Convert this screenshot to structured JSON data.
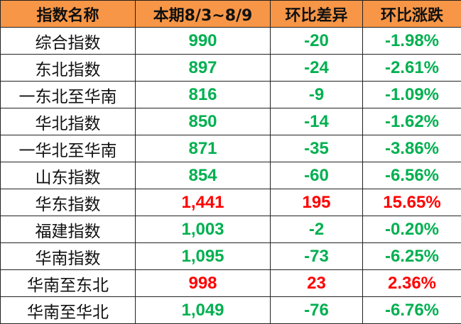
{
  "colors": {
    "header_bg": "#F79646",
    "down": "#00B050",
    "up": "#FF0000"
  },
  "headers": [
    "指数名称",
    "本期8/3~8/9",
    "环比差异",
    "环比涨跌"
  ],
  "rows": [
    {
      "name": "综合指数",
      "value": "990",
      "diff": "-20",
      "pct": "-1.98%",
      "trend": "down"
    },
    {
      "name": "东北指数",
      "value": "897",
      "diff": "-24",
      "pct": "-2.61%",
      "trend": "down"
    },
    {
      "name": "一东北至华南",
      "value": "816",
      "diff": "-9",
      "pct": "-1.09%",
      "trend": "down"
    },
    {
      "name": "华北指数",
      "value": "850",
      "diff": "-14",
      "pct": "-1.62%",
      "trend": "down"
    },
    {
      "name": "一华北至华南",
      "value": "871",
      "diff": "-35",
      "pct": "-3.86%",
      "trend": "down"
    },
    {
      "name": "山东指数",
      "value": "854",
      "diff": "-60",
      "pct": "-6.56%",
      "trend": "down"
    },
    {
      "name": "华东指数",
      "value": "1,441",
      "diff": "195",
      "pct": "15.65%",
      "trend": "up"
    },
    {
      "name": "福建指数",
      "value": "1,003",
      "diff": "-2",
      "pct": "-0.20%",
      "trend": "down"
    },
    {
      "name": "华南指数",
      "value": "1,095",
      "diff": "-73",
      "pct": "-6.25%",
      "trend": "down"
    },
    {
      "name": "华南至东北",
      "value": "998",
      "diff": "23",
      "pct": "2.36%",
      "trend": "up"
    },
    {
      "name": "华南至华北",
      "value": "1,049",
      "diff": "-76",
      "pct": "-6.76%",
      "trend": "down"
    }
  ]
}
